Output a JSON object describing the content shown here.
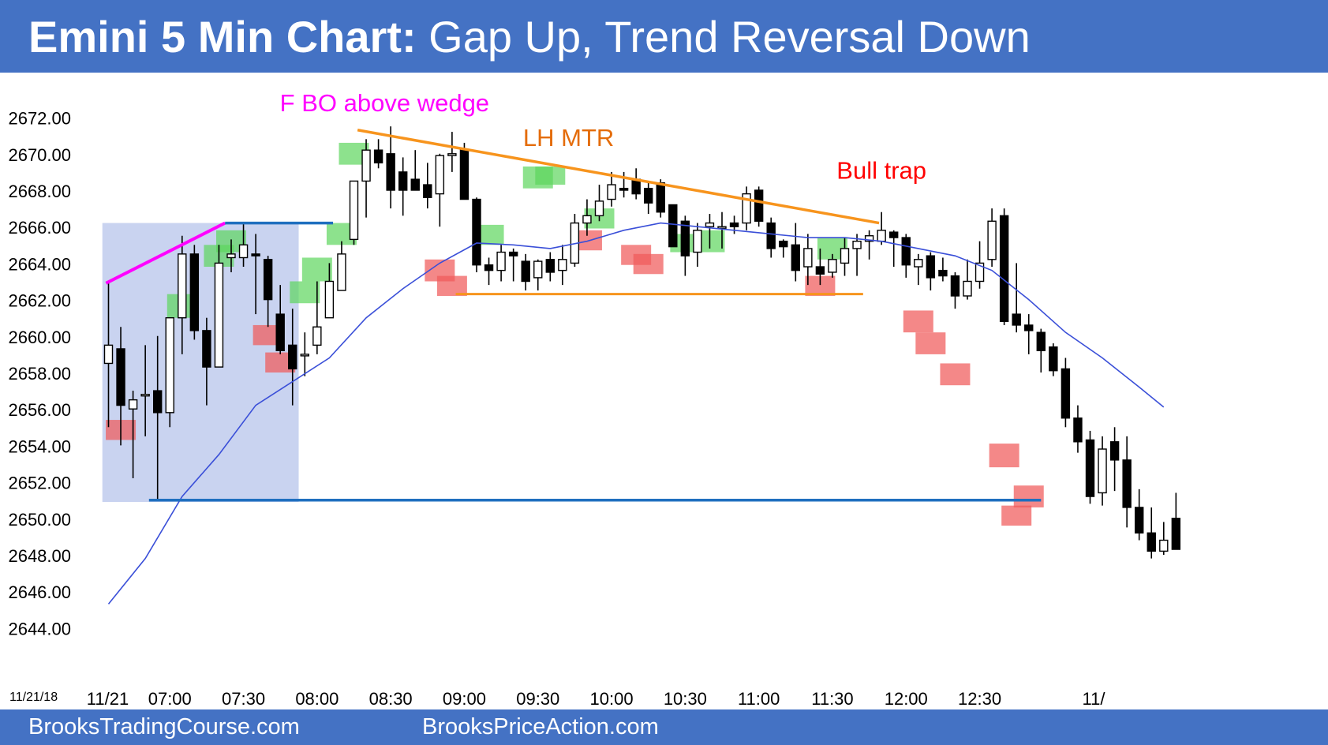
{
  "title": {
    "bold": "Emini 5 Min Chart:",
    "rest": " Gap Up, Trend Reversal Down"
  },
  "footer": {
    "left": "BrooksTradingCourse.com",
    "right": "BrooksPriceAction.com"
  },
  "colors": {
    "header_bg": "#4472c4",
    "bull_highlight": "#5cd65c",
    "bear_highlight": "#f05a5a",
    "open_range": "#c9d3f0",
    "ema": "#3a4fd8",
    "trend_line": "#f7941d",
    "wedge_line": "#ff00ff",
    "breakout_line": "#1f6fbf"
  },
  "chart_data": {
    "type": "candlestick",
    "date_label": "11/21/18",
    "ylim": [
      2643,
      2674
    ],
    "y_ticks": [
      "2672.00",
      "2670.00",
      "2668.00",
      "2666.00",
      "2664.00",
      "2662.00",
      "2660.00",
      "2658.00",
      "2656.00",
      "2654.00",
      "2652.00",
      "2650.00",
      "2648.00",
      "2646.00",
      "2644.00"
    ],
    "x_ticks": [
      {
        "label": "11/21",
        "bar": 0
      },
      {
        "label": "07:00",
        "bar": 5
      },
      {
        "label": "07:30",
        "bar": 11
      },
      {
        "label": "08:00",
        "bar": 17
      },
      {
        "label": "08:30",
        "bar": 23
      },
      {
        "label": "09:00",
        "bar": 29
      },
      {
        "label": "09:30",
        "bar": 35
      },
      {
        "label": "10:00",
        "bar": 41
      },
      {
        "label": "10:30",
        "bar": 47
      },
      {
        "label": "11:00",
        "bar": 53
      },
      {
        "label": "11:30",
        "bar": 59
      },
      {
        "label": "12:00",
        "bar": 65
      },
      {
        "label": "12:30",
        "bar": 71
      },
      {
        "label": "11/",
        "bar": 80
      }
    ],
    "candles": [
      {
        "o": 2658.5,
        "h": 2663,
        "l": 2655,
        "c": 2659.5
      },
      {
        "o": 2659.3,
        "h": 2660.5,
        "l": 2654,
        "c": 2656.2
      },
      {
        "o": 2656.0,
        "h": 2657,
        "l": 2652.2,
        "c": 2656.5
      },
      {
        "o": 2656.8,
        "h": 2659.5,
        "l": 2654.5,
        "c": 2656.8
      },
      {
        "o": 2657,
        "h": 2660,
        "l": 2651,
        "c": 2655.8
      },
      {
        "o": 2655.8,
        "h": 2661,
        "l": 2655,
        "c": 2661
      },
      {
        "o": 2661,
        "h": 2665.5,
        "l": 2659,
        "c": 2664.5
      },
      {
        "o": 2664.5,
        "h": 2665,
        "l": 2659.8,
        "c": 2660.3
      },
      {
        "o": 2660.3,
        "h": 2661,
        "l": 2656.2,
        "c": 2658.3
      },
      {
        "o": 2658.3,
        "h": 2665,
        "l": 2658.3,
        "c": 2664
      },
      {
        "o": 2664.3,
        "h": 2665.3,
        "l": 2663.5,
        "c": 2664.5
      },
      {
        "o": 2664.3,
        "h": 2666.2,
        "l": 2663.8,
        "c": 2665
      },
      {
        "o": 2664.5,
        "h": 2665.6,
        "l": 2661.2,
        "c": 2664.4
      },
      {
        "o": 2664.2,
        "h": 2664.4,
        "l": 2660.5,
        "c": 2662
      },
      {
        "o": 2661.2,
        "h": 2662.8,
        "l": 2659,
        "c": 2659.2
      },
      {
        "o": 2659.5,
        "h": 2661.5,
        "l": 2656.2,
        "c": 2658.2
      },
      {
        "o": 2659,
        "h": 2660.2,
        "l": 2657.8,
        "c": 2659
      },
      {
        "o": 2659.5,
        "h": 2663,
        "l": 2659,
        "c": 2660.5
      },
      {
        "o": 2661,
        "h": 2664,
        "l": 2661,
        "c": 2663
      },
      {
        "o": 2662.5,
        "h": 2665.2,
        "l": 2662.5,
        "c": 2664.5
      },
      {
        "o": 2665.3,
        "h": 2668.3,
        "l": 2665,
        "c": 2668.5
      },
      {
        "o": 2668.5,
        "h": 2670.8,
        "l": 2666.5,
        "c": 2670.2
      },
      {
        "o": 2670.2,
        "h": 2670.8,
        "l": 2669.2,
        "c": 2669.5
      },
      {
        "o": 2670,
        "h": 2671.5,
        "l": 2667,
        "c": 2668
      },
      {
        "o": 2669,
        "h": 2669.8,
        "l": 2666.6,
        "c": 2668
      },
      {
        "o": 2668.6,
        "h": 2670.2,
        "l": 2668,
        "c": 2668
      },
      {
        "o": 2668.3,
        "h": 2669.5,
        "l": 2667,
        "c": 2667.6
      },
      {
        "o": 2667.8,
        "h": 2670,
        "l": 2666,
        "c": 2669.9
      },
      {
        "o": 2669.9,
        "h": 2671.2,
        "l": 2669,
        "c": 2670
      },
      {
        "o": 2670.2,
        "h": 2670.6,
        "l": 2667.6,
        "c": 2667.5
      },
      {
        "o": 2667.5,
        "h": 2667.6,
        "l": 2663.5,
        "c": 2663.9
      },
      {
        "o": 2663.9,
        "h": 2664.3,
        "l": 2662.8,
        "c": 2663.6
      },
      {
        "o": 2663.6,
        "h": 2665,
        "l": 2663,
        "c": 2664.6
      },
      {
        "o": 2664.6,
        "h": 2664.8,
        "l": 2663,
        "c": 2664.4
      },
      {
        "o": 2664.1,
        "h": 2664.5,
        "l": 2662.5,
        "c": 2663
      },
      {
        "o": 2663.2,
        "h": 2664.2,
        "l": 2662.5,
        "c": 2664.1
      },
      {
        "o": 2664.2,
        "h": 2664.6,
        "l": 2663,
        "c": 2663.5
      },
      {
        "o": 2663.6,
        "h": 2665,
        "l": 2662.8,
        "c": 2664.2
      },
      {
        "o": 2664,
        "h": 2666.7,
        "l": 2663.8,
        "c": 2666.2
      },
      {
        "o": 2666.2,
        "h": 2667.5,
        "l": 2665.5,
        "c": 2666.6
      },
      {
        "o": 2666.6,
        "h": 2668.3,
        "l": 2666.3,
        "c": 2667.4
      },
      {
        "o": 2667.5,
        "h": 2669,
        "l": 2667.1,
        "c": 2668.3
      },
      {
        "o": 2668.1,
        "h": 2669,
        "l": 2667.6,
        "c": 2668
      },
      {
        "o": 2668.6,
        "h": 2669.2,
        "l": 2667.5,
        "c": 2667.8
      },
      {
        "o": 2668.1,
        "h": 2668.5,
        "l": 2666.7,
        "c": 2667.3
      },
      {
        "o": 2668.4,
        "h": 2668.6,
        "l": 2666.5,
        "c": 2666.8
      },
      {
        "o": 2667.2,
        "h": 2667.2,
        "l": 2664.9,
        "c": 2664.9
      },
      {
        "o": 2666.3,
        "h": 2666.6,
        "l": 2663.3,
        "c": 2664.4
      },
      {
        "o": 2664.6,
        "h": 2666.2,
        "l": 2663.8,
        "c": 2665.8
      },
      {
        "o": 2666,
        "h": 2666.7,
        "l": 2664.8,
        "c": 2666.2
      },
      {
        "o": 2666,
        "h": 2666.8,
        "l": 2664.8,
        "c": 2666
      },
      {
        "o": 2666.2,
        "h": 2666.6,
        "l": 2665.6,
        "c": 2666
      },
      {
        "o": 2666.2,
        "h": 2668.2,
        "l": 2665.8,
        "c": 2667.8
      },
      {
        "o": 2668,
        "h": 2668.2,
        "l": 2666,
        "c": 2666.3
      },
      {
        "o": 2666.2,
        "h": 2666.5,
        "l": 2664.3,
        "c": 2664.8
      },
      {
        "o": 2665.2,
        "h": 2665.3,
        "l": 2664.3,
        "c": 2664.9
      },
      {
        "o": 2665,
        "h": 2666.2,
        "l": 2663,
        "c": 2663.6
      },
      {
        "o": 2663.8,
        "h": 2665.6,
        "l": 2662.8,
        "c": 2664.8
      },
      {
        "o": 2663.8,
        "h": 2664.8,
        "l": 2662.8,
        "c": 2663.4
      },
      {
        "o": 2663.5,
        "h": 2664.5,
        "l": 2663.2,
        "c": 2664.2
      },
      {
        "o": 2664,
        "h": 2665.4,
        "l": 2663.3,
        "c": 2664.8
      },
      {
        "o": 2664.8,
        "h": 2665.6,
        "l": 2663.3,
        "c": 2665.2
      },
      {
        "o": 2665.2,
        "h": 2665.8,
        "l": 2664.2,
        "c": 2665.5
      },
      {
        "o": 2665.2,
        "h": 2666.8,
        "l": 2665,
        "c": 2665.8
      },
      {
        "o": 2665.7,
        "h": 2665.8,
        "l": 2663.8,
        "c": 2665.4
      },
      {
        "o": 2665.4,
        "h": 2665.6,
        "l": 2663.2,
        "c": 2663.9
      },
      {
        "o": 2663.8,
        "h": 2664.5,
        "l": 2662.8,
        "c": 2664.2
      },
      {
        "o": 2664.4,
        "h": 2664.6,
        "l": 2662.5,
        "c": 2663.2
      },
      {
        "o": 2663.6,
        "h": 2664.3,
        "l": 2663,
        "c": 2663.3
      },
      {
        "o": 2663.3,
        "h": 2663.5,
        "l": 2661.5,
        "c": 2662.2
      },
      {
        "o": 2662.2,
        "h": 2664.2,
        "l": 2662,
        "c": 2663
      },
      {
        "o": 2663,
        "h": 2665.2,
        "l": 2662.6,
        "c": 2664
      },
      {
        "o": 2664.2,
        "h": 2667,
        "l": 2663.8,
        "c": 2666.3
      },
      {
        "o": 2666.6,
        "h": 2667,
        "l": 2660.6,
        "c": 2660.8
      },
      {
        "o": 2661.2,
        "h": 2664,
        "l": 2660.2,
        "c": 2660.6
      },
      {
        "o": 2660.6,
        "h": 2661.2,
        "l": 2659,
        "c": 2660.3
      },
      {
        "o": 2660.2,
        "h": 2660.4,
        "l": 2658,
        "c": 2659.2
      },
      {
        "o": 2659.4,
        "h": 2659.6,
        "l": 2657.8,
        "c": 2658.1
      },
      {
        "o": 2658.2,
        "h": 2658.8,
        "l": 2655,
        "c": 2655.5
      },
      {
        "o": 2655.5,
        "h": 2656.2,
        "l": 2653.6,
        "c": 2654.2
      },
      {
        "o": 2654.3,
        "h": 2654.8,
        "l": 2650.8,
        "c": 2651.2
      },
      {
        "o": 2651.4,
        "h": 2654.5,
        "l": 2650.7,
        "c": 2653.8
      },
      {
        "o": 2654.2,
        "h": 2655,
        "l": 2651.5,
        "c": 2653.2
      },
      {
        "o": 2653.2,
        "h": 2654.5,
        "l": 2649.5,
        "c": 2650.6
      },
      {
        "o": 2650.6,
        "h": 2651.6,
        "l": 2648.8,
        "c": 2649.2
      },
      {
        "o": 2649.2,
        "h": 2650.6,
        "l": 2647.8,
        "c": 2648.2
      },
      {
        "o": 2648.2,
        "h": 2649.8,
        "l": 2648,
        "c": 2648.8
      },
      {
        "o": 2650,
        "h": 2651.4,
        "l": 2648.3,
        "c": 2648.3
      }
    ],
    "ema": [
      [
        0,
        2645.3
      ],
      [
        3,
        2647.8
      ],
      [
        6,
        2651.2
      ],
      [
        9,
        2653.5
      ],
      [
        12,
        2656.2
      ],
      [
        15,
        2657.5
      ],
      [
        18,
        2658.8
      ],
      [
        21,
        2661
      ],
      [
        24,
        2662.6
      ],
      [
        27,
        2664
      ],
      [
        30,
        2665.1
      ],
      [
        33,
        2665
      ],
      [
        36,
        2664.8
      ],
      [
        39,
        2665.2
      ],
      [
        42,
        2665.8
      ],
      [
        45,
        2666.2
      ],
      [
        48,
        2666
      ],
      [
        51,
        2665.8
      ],
      [
        54,
        2665.6
      ],
      [
        57,
        2665.4
      ],
      [
        60,
        2665.4
      ],
      [
        63,
        2665.2
      ],
      [
        66,
        2664.8
      ],
      [
        69,
        2664.4
      ],
      [
        72,
        2663.6
      ],
      [
        75,
        2662
      ],
      [
        78,
        2660.2
      ],
      [
        81,
        2658.8
      ],
      [
        84,
        2657.2
      ],
      [
        86,
        2656.1
      ]
    ],
    "highlights": {
      "bull": [
        {
          "bar": 6,
          "y1": 2661,
          "y2": 2662.3
        },
        {
          "bar": 9,
          "y1": 2663.8,
          "y2": 2665
        },
        {
          "bar": 10,
          "y1": 2664.6,
          "y2": 2665.8
        },
        {
          "bar": 16,
          "y1": 2661.8,
          "y2": 2663
        },
        {
          "bar": 17,
          "y1": 2663,
          "y2": 2664.3
        },
        {
          "bar": 19,
          "y1": 2665,
          "y2": 2666.2
        },
        {
          "bar": 20,
          "y1": 2669.4,
          "y2": 2670.6
        },
        {
          "bar": 31,
          "y1": 2665,
          "y2": 2666.1
        },
        {
          "bar": 35,
          "y1": 2668.1,
          "y2": 2669.3
        },
        {
          "bar": 36,
          "y1": 2668.3,
          "y2": 2669.3
        },
        {
          "bar": 40,
          "y1": 2665.9,
          "y2": 2667
        },
        {
          "bar": 47,
          "y1": 2664.6,
          "y2": 2665.6
        },
        {
          "bar": 49,
          "y1": 2664.6,
          "y2": 2665.8
        },
        {
          "bar": 59,
          "y1": 2664.2,
          "y2": 2665.4
        }
      ],
      "bear": [
        {
          "bar": 1,
          "y1": 2654.3,
          "y2": 2655.4
        },
        {
          "bar": 13,
          "y1": 2659.5,
          "y2": 2660.6
        },
        {
          "bar": 14,
          "y1": 2658,
          "y2": 2659.1
        },
        {
          "bar": 27,
          "y1": 2663,
          "y2": 2664.2
        },
        {
          "bar": 28,
          "y1": 2662.2,
          "y2": 2663.3
        },
        {
          "bar": 39,
          "y1": 2664.7,
          "y2": 2665.8
        },
        {
          "bar": 43,
          "y1": 2663.9,
          "y2": 2665
        },
        {
          "bar": 44,
          "y1": 2663.4,
          "y2": 2664.5
        },
        {
          "bar": 58,
          "y1": 2662.2,
          "y2": 2663.3
        },
        {
          "bar": 66,
          "y1": 2660.2,
          "y2": 2661.4
        },
        {
          "bar": 67,
          "y1": 2659,
          "y2": 2660.2
        },
        {
          "bar": 69,
          "y1": 2657.3,
          "y2": 2658.5
        },
        {
          "bar": 73,
          "y1": 2652.8,
          "y2": 2654.1
        },
        {
          "bar": 74,
          "y1": 2649.6,
          "y2": 2650.7
        },
        {
          "bar": 75,
          "y1": 2650.6,
          "y2": 2651.8
        }
      ]
    },
    "opening_range": {
      "bar_from": -0.5,
      "bar_to": 15.5,
      "high": 2666.2,
      "low": 2650.9
    },
    "lines": {
      "wedge": [
        [
          -0.2,
          2662.9
        ],
        [
          9.5,
          2666.2
        ]
      ],
      "top_breakout": [
        [
          9.5,
          2666.2
        ],
        [
          18.3,
          2666.2
        ]
      ],
      "bottom_breakout": [
        [
          3.3,
          2651
        ],
        [
          76,
          2651
        ]
      ],
      "trend_top": [
        [
          20.3,
          2671.3
        ],
        [
          62.8,
          2666.2
        ]
      ],
      "trend_bottom": [
        [
          28.3,
          2662.3
        ],
        [
          61.5,
          2662.3
        ]
      ]
    },
    "annotations": [
      {
        "text": "F BO above wedge",
        "color": "#ff00ff",
        "bar": 22.5,
        "y": 2672.8
      },
      {
        "text": "LH MTR",
        "color": "#e46c0a",
        "bar": 37.5,
        "y": 2670.9
      },
      {
        "text": "Bull trap",
        "color": "#ff0000",
        "bar": 63,
        "y": 2669.1
      }
    ]
  }
}
